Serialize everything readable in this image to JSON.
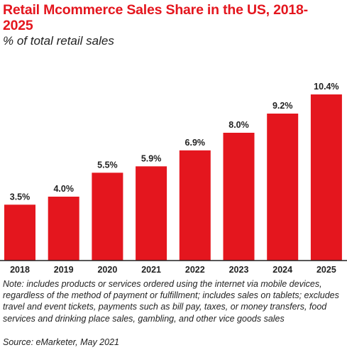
{
  "title": "Retail Mcommerce Sales Share in the US, 2018-2025",
  "subtitle": "% of total retail sales",
  "note": "Note: includes products or services ordered using the internet via mobile devices, regardless of the method of payment or fulfillment; includes sales on tablets; excludes travel and event tickets, payments such as bill pay, taxes, or money transfers, food services and drinking place sales, gambling, and other vice goods sales",
  "source": "Source: eMarketer, May 2021",
  "colors": {
    "bar": "#e4161e",
    "title": "#e4161e",
    "text": "#222222",
    "axis": "#222222"
  },
  "chart_data": {
    "type": "bar",
    "title": "Retail Mcommerce Sales Share in the US, 2018-2025",
    "subtitle": "% of total retail sales",
    "categories": [
      "2018",
      "2019",
      "2020",
      "2021",
      "2022",
      "2023",
      "2024",
      "2025"
    ],
    "values": [
      3.5,
      4.0,
      5.5,
      5.9,
      6.9,
      8.0,
      9.2,
      10.4
    ],
    "value_labels": [
      "3.5%",
      "4.0%",
      "5.5%",
      "5.9%",
      "6.9%",
      "8.0%",
      "9.2%",
      "10.4%"
    ],
    "xlabel": "",
    "ylabel": "",
    "ylim": [
      0,
      10.4
    ],
    "grid": false,
    "legend": "none"
  }
}
